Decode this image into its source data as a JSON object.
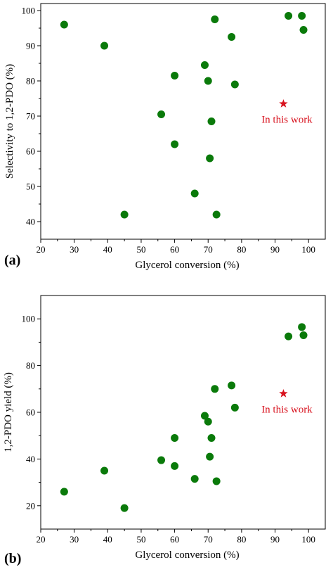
{
  "colors": {
    "point": "#0a7a0a",
    "highlight": "#d8131f"
  },
  "chart_data": [
    {
      "type": "scatter",
      "panel_label": "(a)",
      "xlabel": "Glycerol conversion (%)",
      "ylabel": "Selectivity to 1,2-PDO (%)",
      "xlim": [
        20,
        105
      ],
      "ylim": [
        35,
        102
      ],
      "xticks": [
        20,
        30,
        40,
        50,
        60,
        70,
        80,
        90,
        100
      ],
      "yticks": [
        40,
        50,
        60,
        70,
        80,
        90,
        100
      ],
      "points": [
        {
          "x": 27,
          "y": 96
        },
        {
          "x": 39,
          "y": 90
        },
        {
          "x": 45,
          "y": 42
        },
        {
          "x": 56,
          "y": 70.5
        },
        {
          "x": 60,
          "y": 81.5
        },
        {
          "x": 60,
          "y": 62
        },
        {
          "x": 66,
          "y": 48
        },
        {
          "x": 69,
          "y": 84.5
        },
        {
          "x": 70,
          "y": 80
        },
        {
          "x": 70.5,
          "y": 58
        },
        {
          "x": 71,
          "y": 68.5
        },
        {
          "x": 72,
          "y": 97.5
        },
        {
          "x": 72.5,
          "y": 42
        },
        {
          "x": 77,
          "y": 92.5
        },
        {
          "x": 78,
          "y": 79
        },
        {
          "x": 94,
          "y": 98.5
        },
        {
          "x": 98,
          "y": 98.5
        },
        {
          "x": 98.5,
          "y": 94.5
        }
      ],
      "highlight": {
        "x": 92.5,
        "y": 73.5,
        "label": "In this work"
      }
    },
    {
      "type": "scatter",
      "panel_label": "(b)",
      "xlabel": "Glycerol conversion (%)",
      "ylabel": "1,2-PDO yield (%)",
      "xlim": [
        20,
        105
      ],
      "ylim": [
        10,
        110
      ],
      "xticks": [
        20,
        30,
        40,
        50,
        60,
        70,
        80,
        90,
        100
      ],
      "yticks": [
        20,
        40,
        60,
        80,
        100
      ],
      "points": [
        {
          "x": 27,
          "y": 26
        },
        {
          "x": 39,
          "y": 35
        },
        {
          "x": 45,
          "y": 19
        },
        {
          "x": 56,
          "y": 39.5
        },
        {
          "x": 60,
          "y": 49
        },
        {
          "x": 60,
          "y": 37
        },
        {
          "x": 66,
          "y": 31.5
        },
        {
          "x": 69,
          "y": 58.5
        },
        {
          "x": 70,
          "y": 56
        },
        {
          "x": 70.5,
          "y": 41
        },
        {
          "x": 71,
          "y": 49
        },
        {
          "x": 72,
          "y": 70
        },
        {
          "x": 72.5,
          "y": 30.5
        },
        {
          "x": 77,
          "y": 71.5
        },
        {
          "x": 78,
          "y": 62
        },
        {
          "x": 94,
          "y": 92.5
        },
        {
          "x": 98,
          "y": 96.5
        },
        {
          "x": 98.5,
          "y": 93
        }
      ],
      "highlight": {
        "x": 92.5,
        "y": 68,
        "label": "In this work"
      }
    }
  ]
}
